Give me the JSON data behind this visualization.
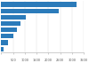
{
  "values": [
    3200,
    2450,
    1050,
    820,
    680,
    530,
    280,
    90
  ],
  "bar_color": "#2b7bba",
  "background_color": "#ffffff",
  "xlim": [
    0,
    3500
  ],
  "bar_height": 0.72,
  "figsize": [
    1.0,
    0.71
  ],
  "dpi": 100,
  "xticks": [
    0,
    500,
    1000,
    1500,
    2000,
    2500,
    3000,
    3500
  ],
  "tick_fontsize": 2.5,
  "axis_color": "#aaaaaa"
}
